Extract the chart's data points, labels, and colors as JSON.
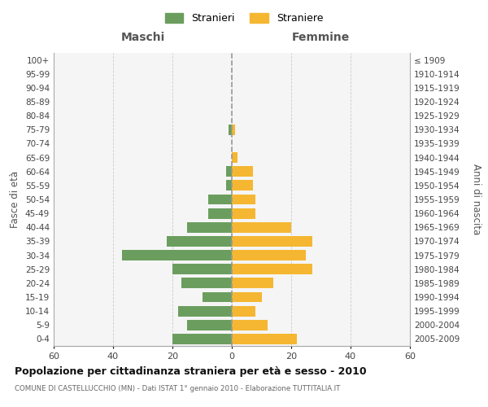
{
  "age_groups": [
    "0-4",
    "5-9",
    "10-14",
    "15-19",
    "20-24",
    "25-29",
    "30-34",
    "35-39",
    "40-44",
    "45-49",
    "50-54",
    "55-59",
    "60-64",
    "65-69",
    "70-74",
    "75-79",
    "80-84",
    "85-89",
    "90-94",
    "95-99",
    "100+"
  ],
  "birth_years": [
    "2005-2009",
    "2000-2004",
    "1995-1999",
    "1990-1994",
    "1985-1989",
    "1980-1984",
    "1975-1979",
    "1970-1974",
    "1965-1969",
    "1960-1964",
    "1955-1959",
    "1950-1954",
    "1945-1949",
    "1940-1944",
    "1935-1939",
    "1930-1934",
    "1925-1929",
    "1920-1924",
    "1915-1919",
    "1910-1914",
    "≤ 1909"
  ],
  "maschi": [
    20,
    15,
    18,
    10,
    17,
    20,
    37,
    22,
    15,
    8,
    8,
    2,
    2,
    0,
    0,
    1,
    0,
    0,
    0,
    0,
    0
  ],
  "femmine": [
    22,
    12,
    8,
    10,
    14,
    27,
    25,
    27,
    20,
    8,
    8,
    7,
    7,
    2,
    0,
    1,
    0,
    0,
    0,
    0,
    0
  ],
  "color_maschi": "#6b9e5e",
  "color_femmine": "#f5b731",
  "title": "Popolazione per cittadinanza straniera per età e sesso - 2010",
  "subtitle": "COMUNE DI CASTELLUCCHIO (MN) - Dati ISTAT 1° gennaio 2010 - Elaborazione TUTTITALIA.IT",
  "ylabel_left": "Fasce di età",
  "ylabel_right": "Anni di nascita",
  "xlabel_maschi": "Maschi",
  "xlabel_femmine": "Femmine",
  "legend_maschi": "Stranieri",
  "legend_femmine": "Straniere",
  "xlim": 60,
  "background_color": "#ffffff",
  "plot_bg_color": "#f5f5f5",
  "grid_color": "#cccccc"
}
